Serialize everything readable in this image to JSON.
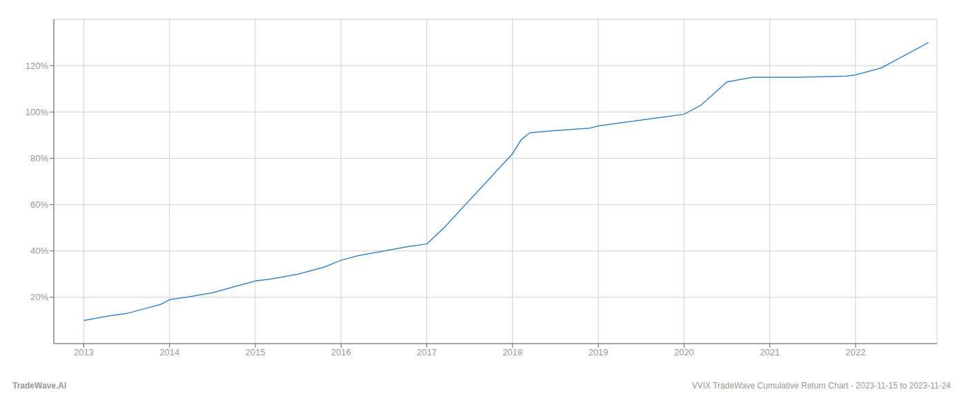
{
  "chart_data": {
    "type": "line",
    "title": "VVIX TradeWave Cumulative Return Chart - 2023-11-15 to 2023-11-24",
    "annotations": [
      "TradeWave.AI"
    ],
    "color": "#3a86c8",
    "grid": true,
    "x": [
      2013.0,
      2013.15,
      2013.3,
      2013.5,
      2013.7,
      2013.9,
      2014.0,
      2014.2,
      2014.5,
      2014.8,
      2015.0,
      2015.2,
      2015.5,
      2015.8,
      2016.0,
      2016.2,
      2016.5,
      2016.8,
      2017.0,
      2017.2,
      2017.4,
      2017.6,
      2017.8,
      2018.0,
      2018.1,
      2018.2,
      2018.35,
      2018.5,
      2018.7,
      2018.9,
      2019.0,
      2019.2,
      2019.4,
      2019.6,
      2019.8,
      2020.0,
      2020.2,
      2020.5,
      2020.8,
      2021.0,
      2021.3,
      2021.6,
      2021.9,
      2022.0,
      2022.3,
      2022.6,
      2022.85
    ],
    "values": [
      10,
      11,
      12,
      13,
      15,
      17,
      19,
      20,
      22,
      25,
      27,
      28,
      30,
      33,
      36,
      38,
      40,
      42,
      43,
      50,
      58,
      66,
      74,
      82,
      88,
      91,
      91.5,
      92,
      92.5,
      93,
      94,
      95,
      96,
      97,
      98,
      99,
      103,
      113,
      115,
      115,
      115,
      115.2,
      115.5,
      116,
      119,
      125,
      130
    ],
    "xlim": [
      2012.65,
      2022.95
    ],
    "xticks": [
      2013,
      2014,
      2015,
      2016,
      2017,
      2018,
      2019,
      2020,
      2021,
      2022
    ],
    "ylim": [
      0,
      140
    ],
    "yticks": [
      {
        "value": 20,
        "label": "20%"
      },
      {
        "value": 40,
        "label": "40%"
      },
      {
        "value": 60,
        "label": "60%"
      },
      {
        "value": 80,
        "label": "80%"
      },
      {
        "value": 100,
        "label": "100%"
      },
      {
        "value": 120,
        "label": "120%"
      }
    ]
  }
}
